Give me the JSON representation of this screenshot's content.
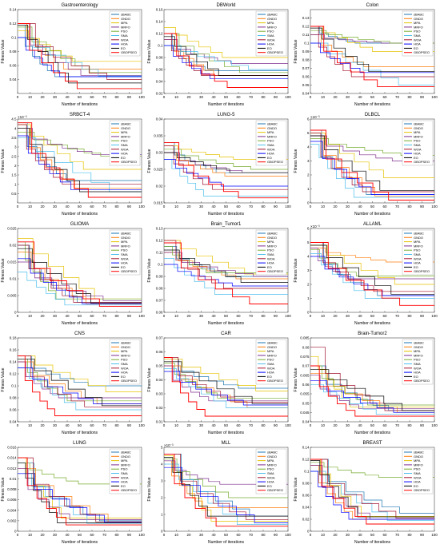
{
  "figure": {
    "legend_labels": [
      "sBABC",
      "GNDO",
      "MPA",
      "MRFO",
      "PSO",
      "SMA",
      "WOA",
      "HOA",
      "EO",
      "GBOPSEO"
    ],
    "series_colors": [
      "#1f77b4",
      "#ff7f0e",
      "#e6c200",
      "#7e2f8e",
      "#77ac30",
      "#4dbeee",
      "#a2142f",
      "#0000ff",
      "#000000",
      "#ff0000"
    ],
    "xlabel": "Number of iterations",
    "ylabel": "Fitness Value"
  },
  "chart_data": [
    {
      "type": "line",
      "title": "Gastroenterology",
      "ylim": [
        0.02,
        0.14
      ],
      "yticks": [
        "0.04",
        "0.06",
        "0.08",
        "0.1",
        "0.12",
        "0.14"
      ],
      "yticks_v": [
        0.04,
        0.06,
        0.08,
        0.1,
        0.12,
        0.14
      ],
      "exp": "",
      "finals": [
        0.044,
        0.055,
        0.066,
        0.046,
        0.05,
        0.045,
        0.04,
        0.044,
        0.035,
        0.027
      ],
      "starts": [
        0.118,
        0.12,
        0.11,
        0.12,
        0.115,
        0.1,
        0.12,
        0.1,
        0.118,
        0.12
      ]
    },
    {
      "type": "line",
      "title": "DBWorld",
      "ylim": [
        0.02,
        0.16
      ],
      "yticks": [
        "0.02",
        "0.04",
        "0.06",
        "0.08",
        "0.1",
        "0.12",
        "0.14",
        "0.16"
      ],
      "yticks_v": [
        0.02,
        0.04,
        0.06,
        0.08,
        0.1,
        0.12,
        0.14,
        0.16
      ],
      "exp": "",
      "finals": [
        0.058,
        0.05,
        0.08,
        0.07,
        0.055,
        0.06,
        0.05,
        0.045,
        0.05,
        0.03
      ],
      "starts": [
        0.12,
        0.11,
        0.13,
        0.11,
        0.12,
        0.1,
        0.12,
        0.1,
        0.115,
        0.12
      ]
    },
    {
      "type": "line",
      "title": "Colon",
      "ylim": [
        0.04,
        0.14
      ],
      "yticks": [
        "0.04",
        "0.05",
        "0.06",
        "0.07",
        "0.08",
        "0.09",
        "0.1",
        "0.11",
        "0.12",
        "0.13"
      ],
      "yticks_v": [
        0.04,
        0.05,
        0.06,
        0.07,
        0.08,
        0.09,
        0.1,
        0.11,
        0.12,
        0.13
      ],
      "exp": "",
      "finals": [
        0.1,
        0.072,
        0.09,
        0.1,
        0.1,
        0.05,
        0.06,
        0.065,
        0.066,
        0.048
      ],
      "starts": [
        0.12,
        0.11,
        0.12,
        0.11,
        0.115,
        0.1,
        0.12,
        0.1,
        0.118,
        0.12
      ]
    },
    {
      "type": "line",
      "title": "SRBCT-4",
      "ylim": [
        0,
        4.5
      ],
      "yticks": [
        "0.5",
        "1",
        "1.5",
        "2",
        "2.5",
        "3",
        "3.5",
        "4",
        "4.5"
      ],
      "yticks_v": [
        0.5,
        1,
        1.5,
        2,
        2.5,
        3,
        3.5,
        4,
        4.5
      ],
      "exp": "×10⁻³",
      "finals": [
        1.2,
        0.8,
        1.8,
        2.6,
        2.5,
        0.6,
        1.0,
        0.7,
        0.6,
        0.3
      ],
      "starts": [
        4.3,
        4.0,
        4.2,
        4.0,
        3.8,
        3.5,
        4.2,
        3.6,
        4.0,
        4.3
      ]
    },
    {
      "type": "line",
      "title": "LUNG-5",
      "ylim": [
        0.015,
        0.04
      ],
      "yticks": [
        "0.015",
        "0.02",
        "0.025",
        "0.03",
        "0.035",
        "0.04"
      ],
      "yticks_v": [
        0.015,
        0.02,
        0.025,
        0.03,
        0.035,
        0.04
      ],
      "exp": "",
      "finals": [
        0.024,
        0.023,
        0.028,
        0.024,
        0.025,
        0.017,
        0.019,
        0.02,
        0.024,
        0.0165
      ],
      "starts": [
        0.033,
        0.03,
        0.032,
        0.03,
        0.031,
        0.028,
        0.032,
        0.028,
        0.03,
        0.033
      ]
    },
    {
      "type": "line",
      "title": "DLBCL",
      "ylim": [
        0,
        6
      ],
      "yticks": [
        "0",
        "1",
        "2",
        "3",
        "4",
        "5",
        "6"
      ],
      "yticks_v": [
        0,
        1,
        2,
        3,
        4,
        5,
        6
      ],
      "exp": "×10⁻³",
      "finals": [
        0.6,
        0.5,
        1.8,
        3.0,
        3.4,
        0.4,
        0.8,
        0.6,
        0.9,
        0.2
      ],
      "starts": [
        5.2,
        4.8,
        5.0,
        4.8,
        4.6,
        4.2,
        5.0,
        4.4,
        4.8,
        5.2
      ]
    },
    {
      "type": "line",
      "title": "GLIOMA",
      "ylim": [
        0,
        0.025
      ],
      "yticks": [
        "0",
        "0.005",
        "0.01",
        "0.015",
        "0.02",
        "0.025"
      ],
      "yticks_v": [
        0,
        0.005,
        0.01,
        0.015,
        0.02,
        0.025
      ],
      "exp": "",
      "finals": [
        0.003,
        0.0025,
        0.004,
        0.0035,
        0.004,
        0.0022,
        0.003,
        0.0026,
        0.0028,
        0.0018
      ],
      "starts": [
        0.02,
        0.018,
        0.022,
        0.015,
        0.021,
        0.012,
        0.02,
        0.016,
        0.019,
        0.021
      ]
    },
    {
      "type": "line",
      "title": "Brain_Tumor1",
      "ylim": [
        0.06,
        0.13
      ],
      "yticks": [
        "0.06",
        "0.07",
        "0.08",
        "0.09",
        "0.1",
        "0.11",
        "0.12",
        "0.13"
      ],
      "yticks_v": [
        0.06,
        0.07,
        0.08,
        0.09,
        0.1,
        0.11,
        0.12,
        0.13
      ],
      "exp": "",
      "finals": [
        0.09,
        0.088,
        0.092,
        0.09,
        0.093,
        0.075,
        0.08,
        0.082,
        0.085,
        0.067
      ],
      "starts": [
        0.115,
        0.11,
        0.12,
        0.11,
        0.115,
        0.105,
        0.12,
        0.1,
        0.112,
        0.118
      ]
    },
    {
      "type": "line",
      "title": "ALLAML",
      "ylim": [
        0,
        6
      ],
      "yticks": [
        "0",
        "1",
        "2",
        "3",
        "4",
        "5",
        "6"
      ],
      "yticks_v": [
        0,
        1,
        2,
        3,
        4,
        5,
        6
      ],
      "exp": "×10⁻³",
      "finals": [
        1.2,
        3.6,
        2.0,
        2.4,
        2.6,
        1.0,
        1.5,
        1.2,
        1.3,
        0.5
      ],
      "starts": [
        5.0,
        4.6,
        4.8,
        4.6,
        4.5,
        4.2,
        5.0,
        4.0,
        4.8,
        5.0
      ]
    },
    {
      "type": "line",
      "title": "CNS",
      "ylim": [
        0.04,
        0.18
      ],
      "yticks": [
        "0.04",
        "0.06",
        "0.08",
        "0.1",
        "0.12",
        "0.14",
        "0.16",
        "0.18"
      ],
      "yticks_v": [
        0.04,
        0.06,
        0.08,
        0.1,
        0.12,
        0.14,
        0.16,
        0.18
      ],
      "exp": "",
      "finals": [
        0.1,
        0.07,
        0.09,
        0.08,
        0.075,
        0.06,
        0.065,
        0.07,
        0.067,
        0.05
      ],
      "starts": [
        0.15,
        0.14,
        0.15,
        0.14,
        0.145,
        0.13,
        0.15,
        0.13,
        0.145,
        0.15
      ]
    },
    {
      "type": "line",
      "title": "CAR",
      "ylim": [
        0.01,
        0.07
      ],
      "yticks": [
        "0.01",
        "0.02",
        "0.03",
        "0.04",
        "0.05",
        "0.06",
        "0.07"
      ],
      "yticks_v": [
        0.01,
        0.02,
        0.03,
        0.04,
        0.05,
        0.06,
        0.07
      ],
      "exp": "",
      "finals": [
        0.034,
        0.02,
        0.032,
        0.025,
        0.027,
        0.02,
        0.024,
        0.022,
        0.023,
        0.014
      ],
      "starts": [
        0.055,
        0.05,
        0.055,
        0.05,
        0.052,
        0.048,
        0.056,
        0.046,
        0.053,
        0.056
      ]
    },
    {
      "type": "line",
      "title": "Brain-Tumor2",
      "ylim": [
        0.04,
        0.085
      ],
      "yticks": [
        "0.04",
        "0.045",
        "0.05",
        "0.055",
        "0.06",
        "0.065",
        "0.07",
        "0.075",
        "0.08",
        "0.085"
      ],
      "yticks_v": [
        0.04,
        0.045,
        0.05,
        0.055,
        0.06,
        0.065,
        0.07,
        0.075,
        0.08,
        0.085
      ],
      "exp": "",
      "finals": [
        0.046,
        0.045,
        0.048,
        0.047,
        0.049,
        0.044,
        0.046,
        0.045,
        0.046,
        0.043
      ],
      "starts": [
        0.07,
        0.066,
        0.075,
        0.065,
        0.07,
        0.06,
        0.08,
        0.062,
        0.068,
        0.07
      ]
    },
    {
      "type": "line",
      "title": "LUNG",
      "ylim": [
        0,
        0.016
      ],
      "yticks": [
        "0",
        "0.002",
        "0.004",
        "0.006",
        "0.008",
        "0.01",
        "0.012",
        "0.014",
        "0.016"
      ],
      "yticks_v": [
        0,
        0.002,
        0.004,
        0.006,
        0.008,
        0.01,
        0.012,
        0.014,
        0.016
      ],
      "exp": "",
      "finals": [
        0.002,
        0.0018,
        0.0025,
        0.0022,
        0.009,
        0.0015,
        0.0018,
        0.0017,
        0.0016,
        0.0012
      ],
      "starts": [
        0.013,
        0.012,
        0.014,
        0.012,
        0.013,
        0.011,
        0.014,
        0.011,
        0.013,
        0.014
      ]
    },
    {
      "type": "line",
      "title": "MLL",
      "ylim": [
        0,
        5
      ],
      "yticks": [
        "0",
        "1",
        "2",
        "3",
        "4",
        "5"
      ],
      "yticks_v": [
        0,
        1,
        2,
        3,
        4,
        5
      ],
      "exp": "×10⁻³",
      "finals": [
        0.9,
        1.4,
        0.6,
        2.8,
        2.0,
        0.4,
        0.7,
        0.5,
        0.9,
        0.3
      ],
      "starts": [
        4.6,
        4.2,
        4.5,
        4.2,
        4.3,
        4.0,
        4.6,
        3.8,
        4.4,
        4.6
      ]
    },
    {
      "type": "line",
      "title": "BREAST",
      "ylim": [
        0,
        0.14
      ],
      "yticks": [
        "0",
        "0.02",
        "0.04",
        "0.06",
        "0.08",
        "0.1",
        "0.12",
        "0.14"
      ],
      "yticks_v": [
        0,
        0.02,
        0.04,
        0.06,
        0.08,
        0.1,
        0.12,
        0.14
      ],
      "exp": "",
      "finals": [
        0.03,
        0.02,
        0.025,
        0.02,
        0.09,
        0.018,
        0.022,
        0.02,
        0.024,
        0.012
      ],
      "starts": [
        0.12,
        0.11,
        0.12,
        0.11,
        0.115,
        0.1,
        0.12,
        0.1,
        0.118,
        0.12
      ]
    }
  ]
}
